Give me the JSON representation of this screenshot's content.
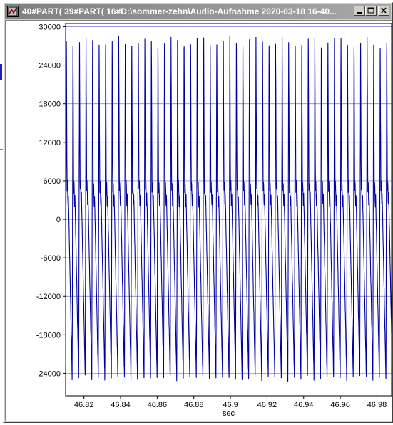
{
  "window": {
    "title": "40#PART( 39#PART( 16#D:\\sommer-zehn\\Audio-Aufnahme 2020-03-18 16-40...",
    "minimize_label": "_",
    "maximize_label": "□",
    "close_label": "×"
  },
  "colors": {
    "signal": "#0000a0",
    "grid": "#0000a0",
    "zero_line": "#008080",
    "window_title_bg": "#808080"
  },
  "chart_data": {
    "type": "line",
    "xlabel": "sec",
    "ylabel": "",
    "xlim": [
      46.81,
      46.988
    ],
    "ylim": [
      -27500,
      30500
    ],
    "x_ticks": [
      "46.82",
      "46.84",
      "46.86",
      "46.88",
      "46.9",
      "46.92",
      "46.94",
      "46.96",
      "46.98"
    ],
    "x_tick_values": [
      46.82,
      46.84,
      46.86,
      46.88,
      46.9,
      46.92,
      46.94,
      46.96,
      46.98
    ],
    "y_ticks": [
      "30000",
      "24000",
      "18000",
      "12000",
      "6000",
      "0",
      "-6000",
      "-12000",
      "-18000",
      "-24000"
    ],
    "y_tick_values": [
      30000,
      24000,
      18000,
      12000,
      6000,
      0,
      -6000,
      -12000,
      -18000,
      -24000
    ],
    "grid": true,
    "series": [
      {
        "period_sec": 0.00357,
        "peak_high": 28500,
        "peak_low": -25000,
        "secondary_level": 4000
      }
    ]
  }
}
